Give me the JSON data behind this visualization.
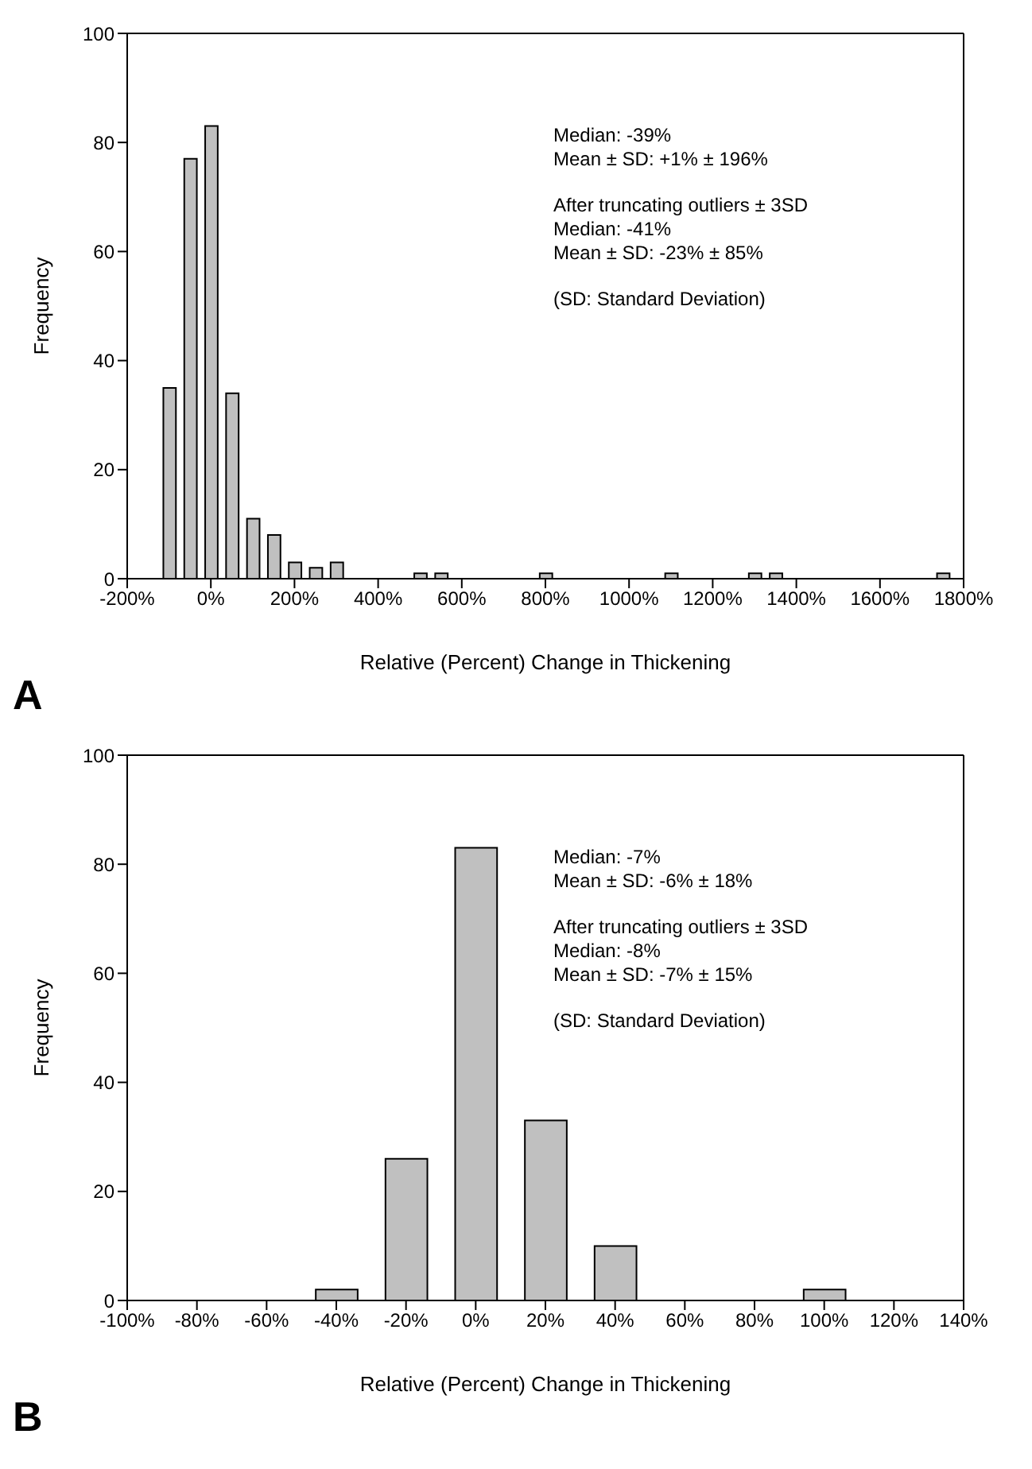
{
  "chart_data": [
    {
      "type": "bar",
      "xlabel": "Relative (Percent) Change in Thickening",
      "ylabel": "Frequency",
      "x": [
        -100,
        -50,
        0,
        50,
        100,
        150,
        200,
        250,
        300,
        500,
        550,
        800,
        1100,
        1300,
        1350,
        1750
      ],
      "values": [
        35,
        77,
        83,
        34,
        11,
        8,
        3,
        2,
        3,
        1,
        1,
        1,
        1,
        1,
        1,
        1
      ],
      "color": "#c0c0c0",
      "xlim": [
        -200,
        1800
      ],
      "xticks": [
        {
          "value": -200,
          "label": "-200%"
        },
        {
          "value": 0,
          "label": "0%"
        },
        {
          "value": 200,
          "label": "200%"
        },
        {
          "value": 400,
          "label": "400%"
        },
        {
          "value": 600,
          "label": "600%"
        },
        {
          "value": 800,
          "label": "800%"
        },
        {
          "value": 1000,
          "label": "1000%"
        },
        {
          "value": 1200,
          "label": "1200%"
        },
        {
          "value": 1400,
          "label": "1400%"
        },
        {
          "value": 1600,
          "label": "1600%"
        },
        {
          "value": 1800,
          "label": "1800%"
        }
      ],
      "ylim": [
        0,
        100
      ],
      "yticks": [
        0,
        20,
        40,
        60,
        80,
        100
      ],
      "grid": false,
      "legend": false,
      "annotations": [
        "A",
        "Median: -39%\nMean ± SD: +1% ± 196%",
        "After truncating outliers ± 3SD\nMedian: -41%\nMean ± SD: -23% ± 85%",
        "(SD: Standard Deviation)"
      ]
    },
    {
      "type": "bar",
      "xlabel": "Relative (Percent) Change in Thickening",
      "ylabel": "Frequency",
      "x": [
        -40,
        -20,
        0,
        20,
        40,
        100
      ],
      "values": [
        2,
        26,
        83,
        33,
        10,
        2
      ],
      "color": "#c0c0c0",
      "xlim": [
        -100,
        140
      ],
      "xticks": [
        {
          "value": -100,
          "label": "-100%"
        },
        {
          "value": -80,
          "label": "-80%"
        },
        {
          "value": -60,
          "label": "-60%"
        },
        {
          "value": -40,
          "label": "-40%"
        },
        {
          "value": -20,
          "label": "-20%"
        },
        {
          "value": 0,
          "label": "0%"
        },
        {
          "value": 20,
          "label": "20%"
        },
        {
          "value": 40,
          "label": "40%"
        },
        {
          "value": 60,
          "label": "60%"
        },
        {
          "value": 80,
          "label": "80%"
        },
        {
          "value": 100,
          "label": "100%"
        },
        {
          "value": 120,
          "label": "120%"
        },
        {
          "value": 140,
          "label": "140%"
        }
      ],
      "ylim": [
        0,
        100
      ],
      "yticks": [
        0,
        20,
        40,
        60,
        80,
        100
      ],
      "grid": false,
      "legend": false,
      "annotations": [
        "B",
        "Median: -7%\nMean ± SD: -6% ± 18%",
        "After truncating outliers ± 3SD\nMedian: -8%\nMean ± SD: -7% ± 15%",
        "(SD: Standard Deviation)"
      ]
    }
  ]
}
